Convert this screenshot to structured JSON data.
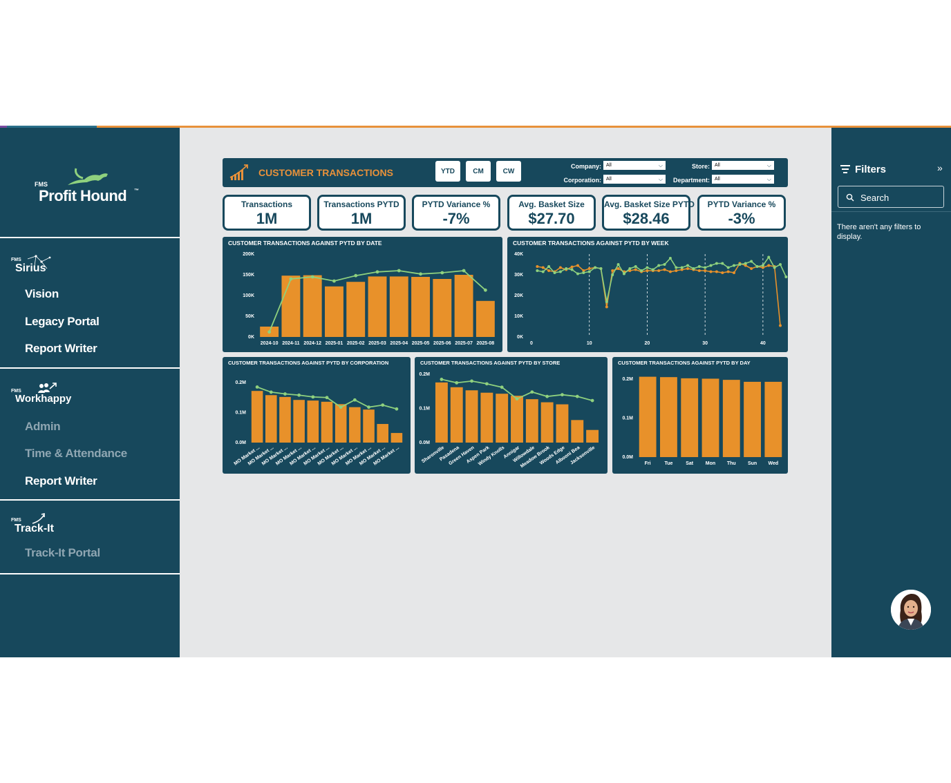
{
  "sidebar": {
    "brand": {
      "fms": "FMS",
      "name": "Profit Hound",
      "tm": "™"
    },
    "sirius": {
      "fms": "FMS",
      "name": "Sirius",
      "items": [
        "Vision",
        "Legacy Portal",
        "Report Writer"
      ]
    },
    "workhappy": {
      "fms": "FMS",
      "name": "Workhappy",
      "items": [
        "Admin",
        "Time & Attendance",
        "Report Writer"
      ]
    },
    "trackit": {
      "fms": "FMS",
      "name": "Track-It",
      "items": [
        "Track-It Portal"
      ]
    }
  },
  "header": {
    "title": "CUSTOMER TRANSACTIONS",
    "periods": [
      "YTD",
      "CM",
      "CW"
    ],
    "slicers": {
      "company": {
        "label": "Company:",
        "value": "All"
      },
      "corporation": {
        "label": "Corporation:",
        "value": "All"
      },
      "store": {
        "label": "Store:",
        "value": "All"
      },
      "department": {
        "label": "Department:",
        "value": "All"
      }
    }
  },
  "kpis": [
    {
      "label": "Transactions",
      "value": "1M"
    },
    {
      "label": "Transactions PYTD",
      "value": "1M"
    },
    {
      "label": "PYTD Variance %",
      "value": "-7%"
    },
    {
      "label": "Avg. Basket Size",
      "value": "$27.70"
    },
    {
      "label": "Avg. Basket Size PYTD",
      "value": "$28.46"
    },
    {
      "label": "PYTD Variance %",
      "value": "-3%"
    }
  ],
  "colors": {
    "bar": "#e8912a",
    "line_pytd": "#8fd17e",
    "line_current": "#e8912a",
    "panel": "#17485c"
  },
  "filters": {
    "title": "Filters",
    "search_placeholder": "Search",
    "empty_message": "There aren't any filters to display."
  },
  "chart_data": [
    {
      "type": "bar",
      "title": "CUSTOMER TRANSACTIONS AGAINST PYTD BY DATE",
      "categories": [
        "2024-10",
        "2024-11",
        "2024-12",
        "2025-01",
        "2025-02",
        "2025-03",
        "2025-04",
        "2025-05",
        "2025-06",
        "2025-07",
        "2025-08"
      ],
      "yticks": [
        "0K",
        "50K",
        "100K",
        "150K",
        "200K"
      ],
      "ylim": [
        0,
        200000
      ],
      "series": [
        {
          "kind": "bar",
          "values": [
            25000,
            148000,
            149000,
            122000,
            133000,
            146000,
            146000,
            145000,
            140000,
            150000,
            87000
          ]
        },
        {
          "kind": "line",
          "values": [
            12000,
            140000,
            145000,
            135000,
            148000,
            157000,
            160000,
            152000,
            155000,
            160000,
            113000
          ]
        }
      ]
    },
    {
      "type": "line",
      "title": "CUSTOMER TRANSACTIONS AGAINST PYTD BY WEEK",
      "xticks": [
        "0",
        "10",
        "20",
        "30",
        "40"
      ],
      "yticks": [
        "0K",
        "10K",
        "20K",
        "30K",
        "40K"
      ],
      "xlim": [
        0,
        43
      ],
      "ylim": [
        0,
        40000
      ],
      "x_start": 1,
      "series": [
        {
          "kind": "current",
          "values": [
            34000,
            33500,
            32000,
            31500,
            33500,
            32500,
            33800,
            34500,
            32000,
            33000,
            33500,
            33000,
            14500,
            32000,
            33000,
            31500,
            32000,
            32500,
            31500,
            32000,
            32000,
            32000,
            32500,
            31500,
            32000,
            32500,
            33000,
            32500,
            32000,
            32000,
            31500,
            31500,
            31000,
            31500,
            31000,
            35500,
            34500,
            33000,
            34000,
            33500,
            34500,
            34000,
            5500
          ]
        },
        {
          "kind": "pytd",
          "values": [
            32000,
            31500,
            34000,
            31000,
            31500,
            33000,
            32500,
            30500,
            31000,
            31500,
            33500,
            33000,
            17000,
            30000,
            35000,
            30500,
            33000,
            34000,
            32000,
            33500,
            32500,
            34500,
            35000,
            38000,
            33500,
            33500,
            34500,
            33000,
            34000,
            33500,
            34500,
            35500,
            35500,
            33500,
            34500,
            35000,
            35500,
            36500,
            34000,
            34500,
            38500,
            33500,
            35000,
            29000
          ]
        }
      ]
    },
    {
      "type": "bar",
      "title": "CUSTOMER TRANSACTIONS AGAINST PYTD BY CORPORATION",
      "categories": [
        "MO Market ...",
        "MO Market ...",
        "MO Market ...",
        "MO Market ...",
        "MO Market ...",
        "MO Market ...",
        "MO Market ...",
        "MO Market ...",
        "MO Market ...",
        "MO Market ...",
        "MO Market ..."
      ],
      "yticks": [
        "0.0M",
        "0.1M",
        "0.2M"
      ],
      "ylim": [
        0,
        0.2
      ],
      "series": [
        {
          "kind": "bar",
          "values": [
            0.172,
            0.158,
            0.152,
            0.142,
            0.14,
            0.136,
            0.128,
            0.118,
            0.11,
            0.062,
            0.032
          ]
        },
        {
          "kind": "line",
          "values": [
            0.185,
            0.168,
            0.162,
            0.158,
            0.152,
            0.15,
            0.118,
            0.142,
            0.118,
            0.125,
            0.112
          ]
        }
      ]
    },
    {
      "type": "bar",
      "title": "CUSTOMER TRANSACTIONS AGAINST PYTD BY STORE",
      "categories": [
        "Sharonville",
        "Pasadena",
        "Green Haven",
        "Aspen Park",
        "Windy Knolls",
        "Annigar",
        "Willowdale",
        "Meadow Brook",
        "Woods Edge",
        "Albooni Bea",
        "Jacksonville"
      ],
      "yticks": [
        "0.0M",
        "0.1M",
        "0.2M"
      ],
      "ylim": [
        0,
        0.2
      ],
      "series": [
        {
          "kind": "bar",
          "values": [
            0.176,
            0.162,
            0.153,
            0.146,
            0.143,
            0.137,
            0.127,
            0.118,
            0.112,
            0.066,
            0.037
          ]
        },
        {
          "kind": "line",
          "values": [
            0.185,
            0.175,
            0.18,
            0.172,
            0.162,
            0.128,
            0.148,
            0.135,
            0.14,
            0.135,
            0.123
          ]
        }
      ]
    },
    {
      "type": "bar",
      "title": "CUSTOMER TRANSACTIONS AGAINST PYTD BY DAY",
      "categories": [
        "Fri",
        "Tue",
        "Sat",
        "Mon",
        "Thu",
        "Sun",
        "Wed"
      ],
      "yticks": [
        "0.0M",
        "0.1M",
        "0.2M"
      ],
      "ylim": [
        0,
        0.2
      ],
      "series": [
        {
          "kind": "bar",
          "values": [
            0.206,
            0.205,
            0.202,
            0.201,
            0.198,
            0.193,
            0.193
          ]
        }
      ]
    }
  ]
}
